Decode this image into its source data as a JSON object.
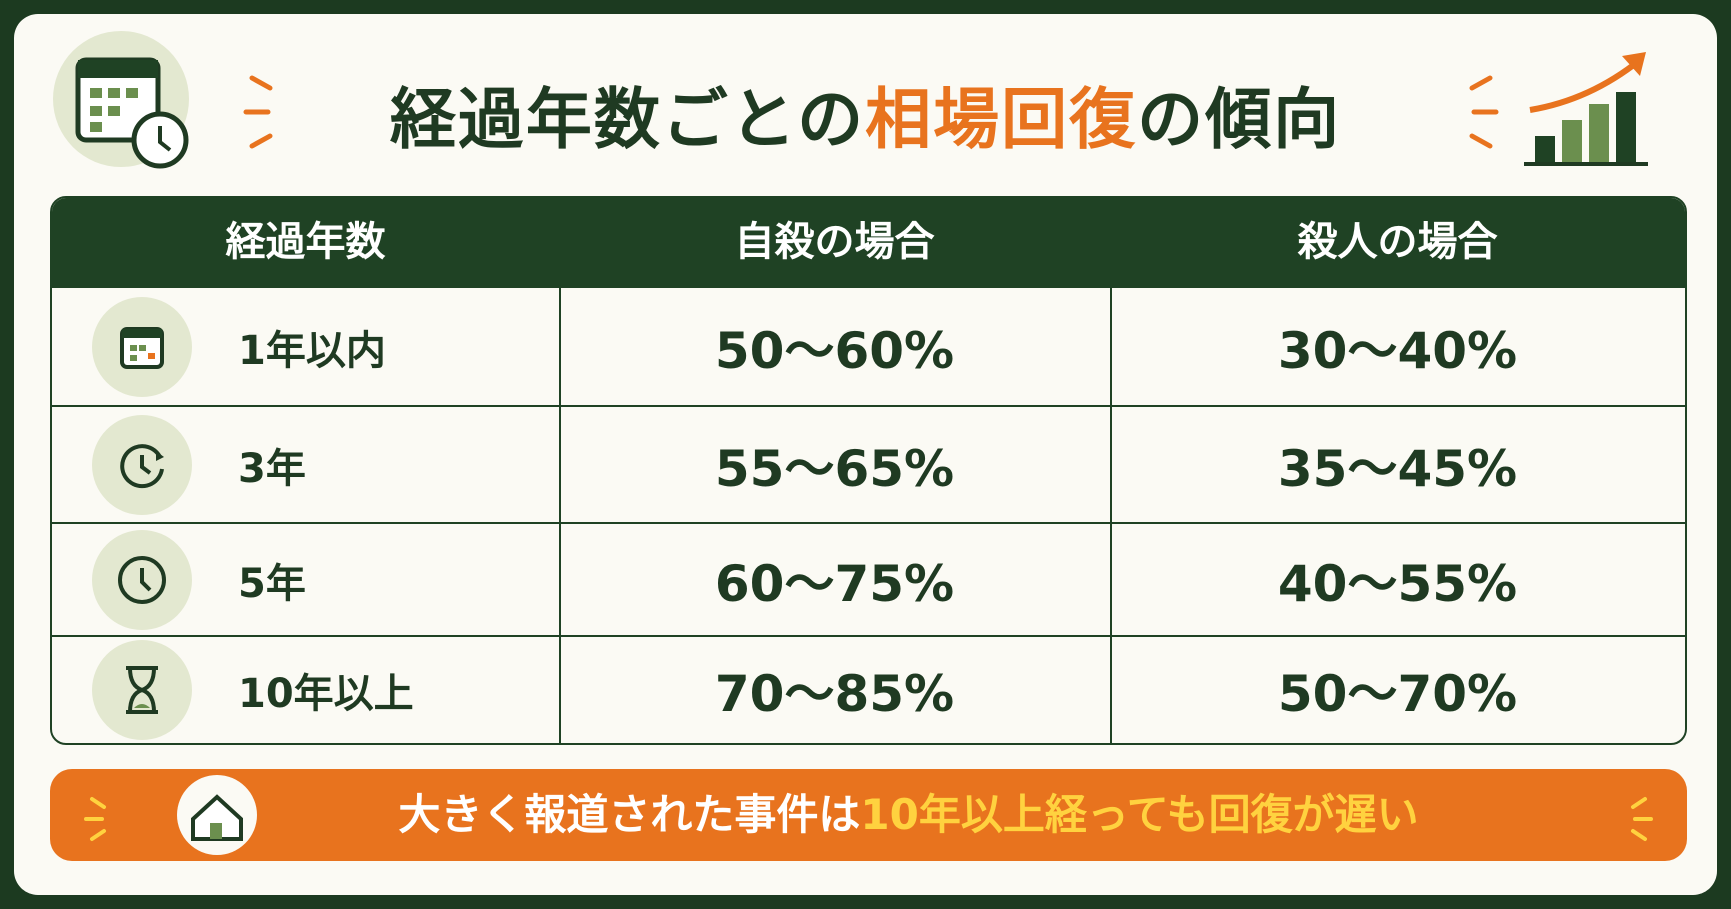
{
  "title": {
    "part1": "経過年数ごとの",
    "highlight": "相場回復",
    "part2": "の傾向"
  },
  "table": {
    "headers": [
      "経過年数",
      "自殺の場合",
      "殺人の場合"
    ],
    "rows": [
      [
        "1年以内",
        "50〜60%",
        "30〜40%"
      ],
      [
        "3年",
        "55〜65%",
        "35〜45%"
      ],
      [
        "5年",
        "60〜75%",
        "40〜55%"
      ],
      [
        "10年以上",
        "70〜85%",
        "50〜70%"
      ]
    ]
  },
  "footer": {
    "part1": "大きく報道された事件は",
    "highlight": "10年以上経っても回復が遅い"
  }
}
